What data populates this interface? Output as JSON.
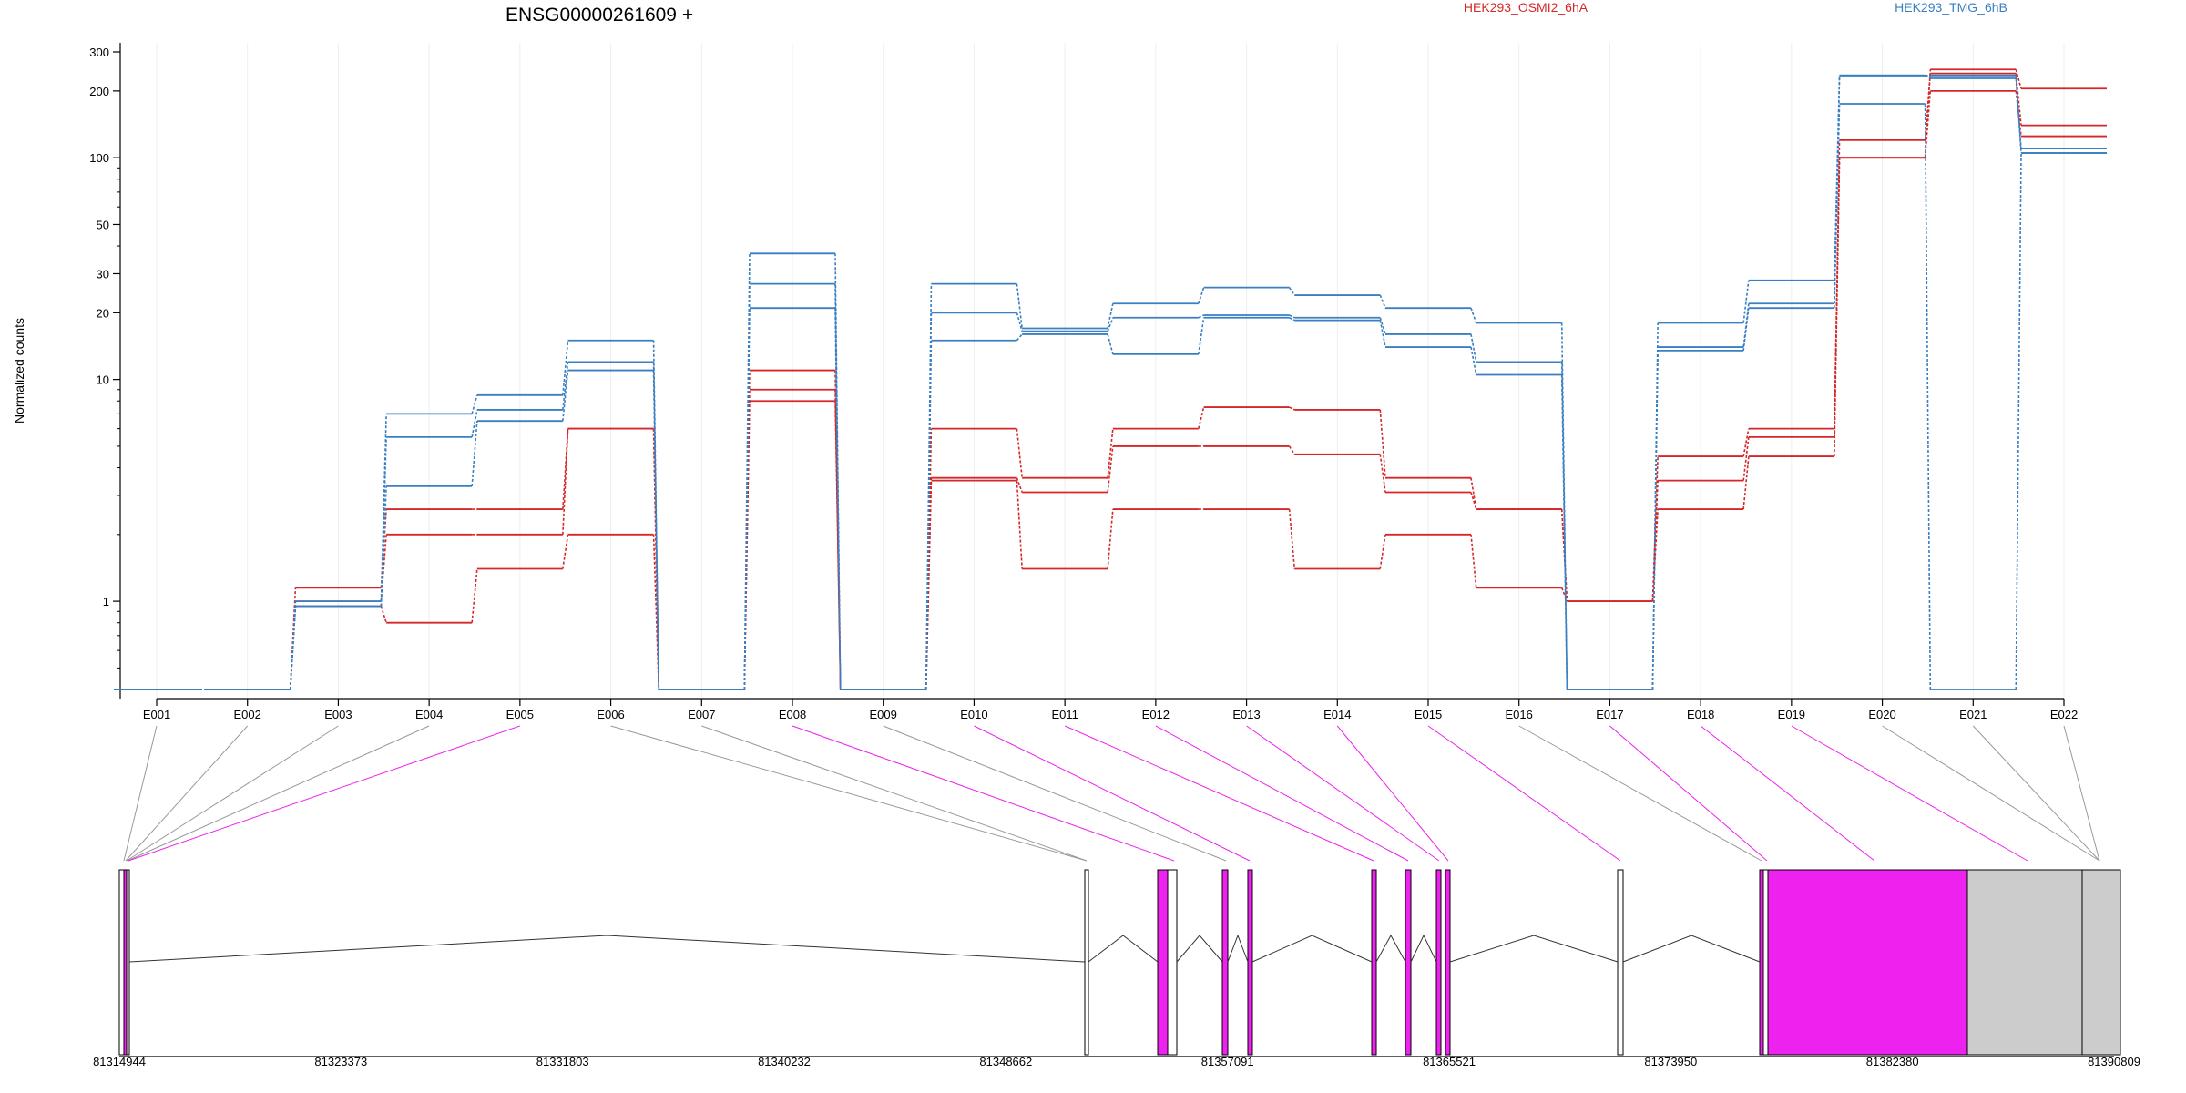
{
  "chart_data": {
    "type": "line",
    "title": "ENSG00000261609 +",
    "ylabel": "Normalized counts",
    "yscale": "log",
    "ylim": [
      0.4,
      300
    ],
    "yticks": [
      "1",
      "10",
      "20",
      "30",
      "50",
      "100",
      "200",
      "300"
    ],
    "grid": "vertical at exon centers",
    "legend": {
      "position": "top-right",
      "entries": [
        {
          "name": "HEK293_OSMI2_6hA",
          "color": "#d62728"
        },
        {
          "name": "HEK293_TMG_6hB",
          "color": "#3a7fc2"
        }
      ]
    },
    "exons": [
      "E001",
      "E002",
      "E003",
      "E004",
      "E005",
      "E006",
      "E007",
      "E008",
      "E009",
      "E010",
      "E011",
      "E012",
      "E013",
      "E014",
      "E015",
      "E016",
      "E017",
      "E018",
      "E019",
      "E020",
      "E021",
      "E022"
    ],
    "series": [
      {
        "name": "HEK293_OSMI2_6hA",
        "group": "HEK293_OSMI2_6hA",
        "values": [
          0.4,
          0.4,
          1.15,
          2.6,
          2.6,
          6.0,
          0.4,
          11.0,
          0.4,
          6.0,
          3.6,
          6.0,
          7.5,
          7.3,
          3.6,
          2.6,
          1.0,
          4.5,
          6.0,
          100,
          250,
          205
        ]
      },
      {
        "name": "HEK293_OSMI2_6hA",
        "group": "HEK293_OSMI2_6hA",
        "values": [
          0.4,
          0.4,
          1.0,
          2.0,
          2.0,
          6.0,
          0.4,
          9.0,
          0.4,
          3.6,
          3.1,
          5.0,
          5.0,
          4.6,
          3.1,
          2.6,
          1.0,
          3.5,
          5.5,
          120,
          240,
          140
        ]
      },
      {
        "name": "HEK293_OSMI2_6hA",
        "group": "HEK293_OSMI2_6hA",
        "values": [
          0.4,
          0.4,
          0.95,
          0.8,
          1.4,
          2.0,
          0.4,
          8.0,
          0.4,
          3.5,
          1.4,
          2.6,
          2.6,
          1.4,
          2.0,
          1.15,
          1.0,
          2.6,
          4.5,
          100,
          200,
          125
        ]
      },
      {
        "name": "HEK293_TMG_6hB",
        "group": "HEK293_TMG_6hB",
        "values": [
          0.4,
          0.4,
          1.0,
          7.0,
          8.5,
          15.0,
          0.4,
          37,
          0.4,
          27,
          17,
          22,
          26,
          24,
          21,
          18,
          0.4,
          18,
          28,
          235,
          235,
          105
        ]
      },
      {
        "name": "HEK293_TMG_6hB",
        "group": "HEK293_TMG_6hB",
        "values": [
          0.4,
          0.4,
          0.95,
          5.5,
          7.3,
          12.0,
          0.4,
          27,
          0.4,
          20,
          16.5,
          19,
          19.5,
          19,
          16,
          12,
          0.4,
          14,
          22,
          235,
          228,
          110
        ]
      },
      {
        "name": "HEK293_TMG_6hB",
        "group": "HEK293_TMG_6hB",
        "values": [
          0.4,
          0.4,
          0.95,
          3.3,
          6.5,
          11.0,
          0.4,
          21,
          0.4,
          15,
          16,
          13,
          19,
          18.5,
          14,
          10.5,
          0.4,
          13.5,
          21,
          175,
          0.4,
          105
        ]
      }
    ],
    "gene_model": {
      "coordinates": [
        "81314944",
        "81323373",
        "81331803",
        "81340232",
        "81348662",
        "81357091",
        "81365521",
        "81373950",
        "81382380",
        "81390809"
      ],
      "range": [
        81314944,
        81390809
      ],
      "highlight_color": "#ee22ee",
      "utr_color": "#cccccc"
    }
  }
}
